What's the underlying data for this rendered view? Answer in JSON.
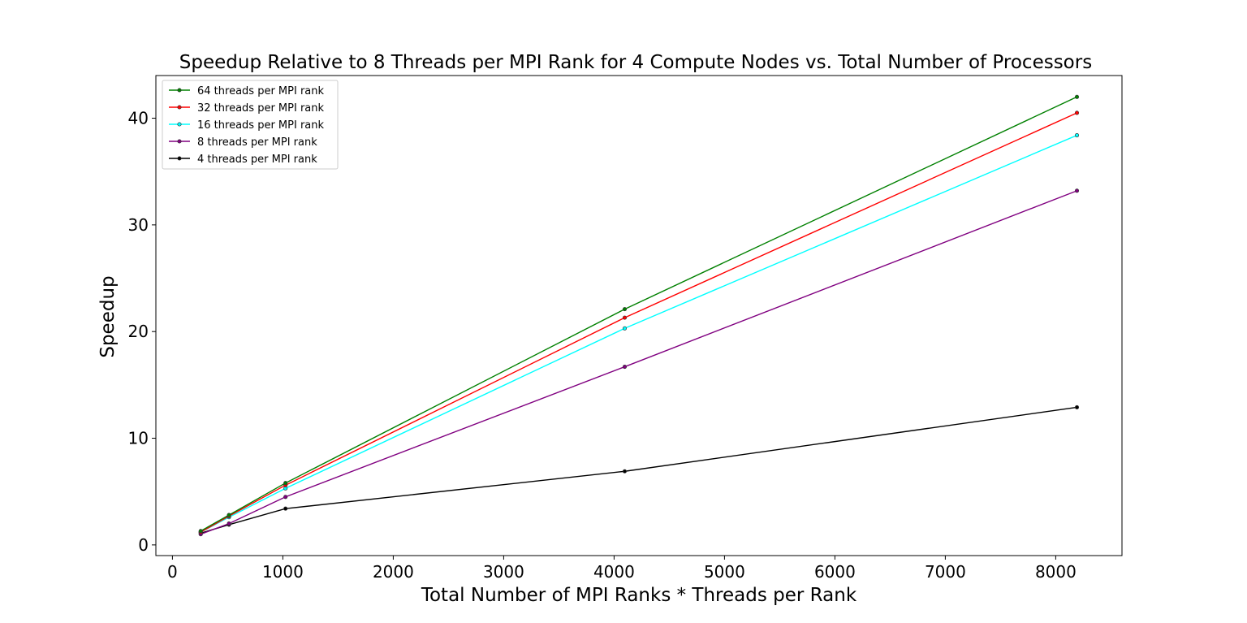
{
  "chart_data": {
    "type": "line",
    "title": "Speedup Relative to 8 Threads per MPI Rank for 4 Compute Nodes vs. Total Number of Processors",
    "xlabel": "Total Number of MPI Ranks * Threads per Rank",
    "ylabel": "Speedup",
    "xlim": [
      -150,
      8600
    ],
    "ylim": [
      -1,
      44
    ],
    "xticks": [
      0,
      1000,
      2000,
      3000,
      4000,
      5000,
      6000,
      7000,
      8000
    ],
    "yticks": [
      0,
      10,
      20,
      30,
      40
    ],
    "grid": false,
    "legend_position": "upper-left",
    "x": [
      256,
      512,
      1024,
      4096,
      8192
    ],
    "series": [
      {
        "name": "64 threads per MPI rank",
        "color": "#008000",
        "values": [
          1.3,
          2.8,
          5.8,
          22.1,
          42.0
        ]
      },
      {
        "name": "32 threads per MPI rank",
        "color": "#ff0000",
        "values": [
          1.2,
          2.7,
          5.6,
          21.3,
          40.5
        ]
      },
      {
        "name": "16 threads per MPI rank",
        "color": "#00ffff",
        "values": [
          1.2,
          2.6,
          5.3,
          20.3,
          38.4
        ]
      },
      {
        "name": "8 threads per MPI rank",
        "color": "#800080",
        "values": [
          1.0,
          2.0,
          4.5,
          16.7,
          33.2
        ]
      },
      {
        "name": "4 threads per MPI rank",
        "color": "#000000",
        "values": [
          1.1,
          1.9,
          3.4,
          6.9,
          12.9
        ]
      }
    ]
  }
}
